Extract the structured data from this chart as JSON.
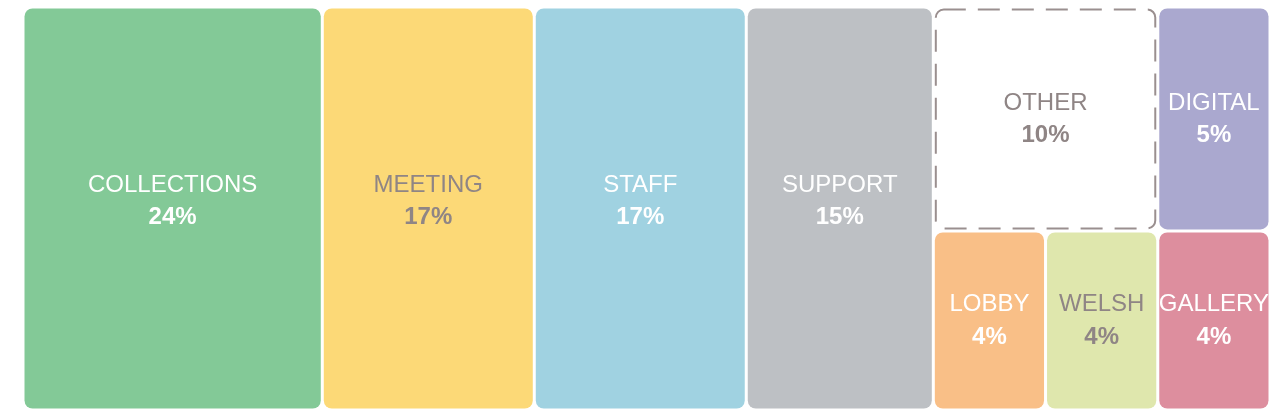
{
  "chart_data": {
    "type": "other",
    "categories": [
      "COLLECTIONS",
      "MEETING",
      "STAFF",
      "SUPPORT",
      "OTHER",
      "DIGITAL",
      "LOBBY",
      "WELSH",
      "GALLERY"
    ],
    "values": [
      24,
      17,
      17,
      15,
      10,
      5,
      4,
      4,
      4
    ],
    "value_labels": [
      "24%",
      "17%",
      "17%",
      "15%",
      "10%",
      "5%",
      "4%",
      "4%",
      "4%"
    ],
    "colors": [
      "#83c997",
      "#fcd977",
      "#a0d2e1",
      "#bdc0c4",
      "#ffffff",
      "#aaa8cf",
      "#f9bf87",
      "#dfe7ad",
      "#dd8e9e"
    ]
  }
}
